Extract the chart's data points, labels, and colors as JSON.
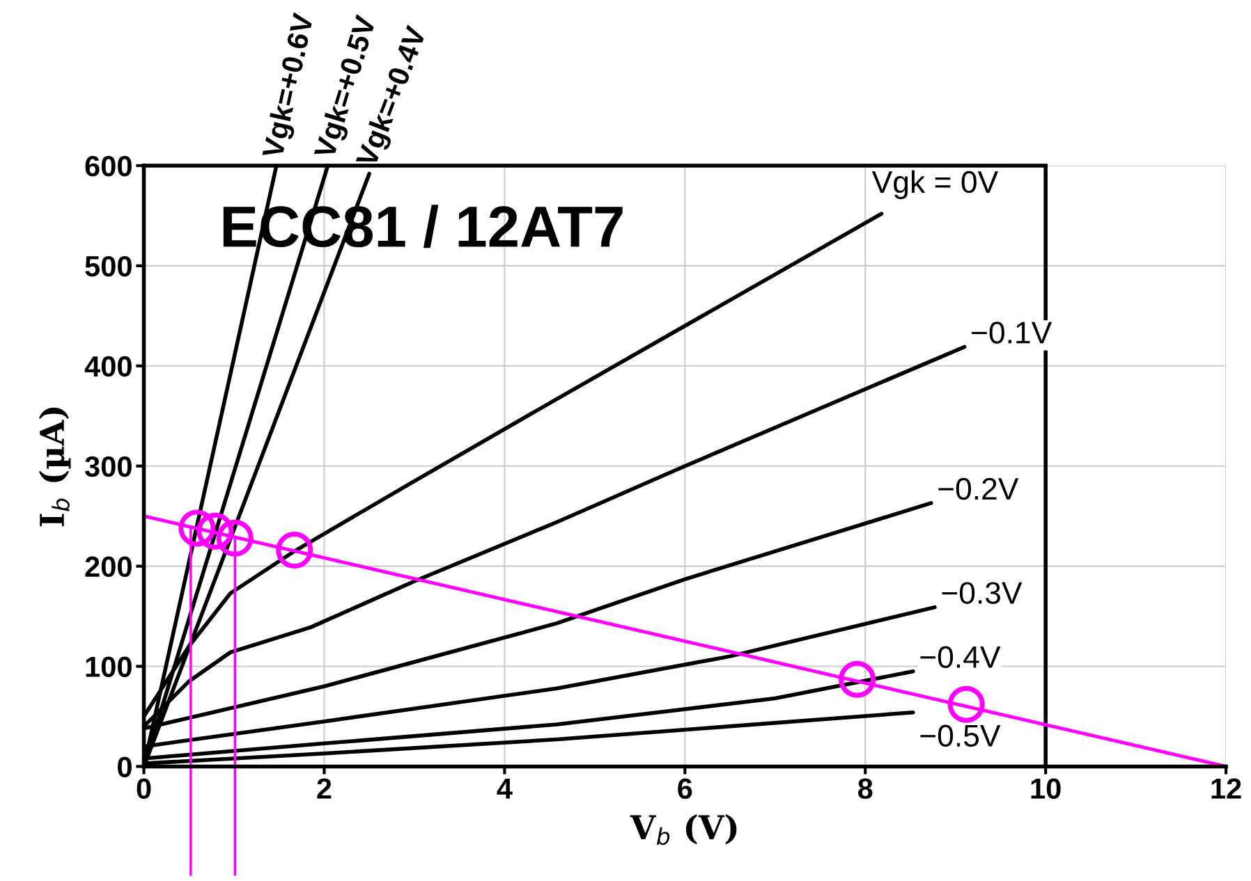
{
  "chart_data": {
    "type": "line",
    "title": "ECC81 / 12AT7",
    "xlabel": "V$_{b}$ (V)",
    "ylabel": "I$_{b}$ (µA)",
    "xlim": [
      0,
      12
    ],
    "xticks": [
      0,
      2,
      4,
      6,
      8,
      10,
      12
    ],
    "ylim": [
      0,
      600
    ],
    "yticks": [
      0,
      100,
      200,
      300,
      400,
      500,
      600
    ],
    "grid": true,
    "legend": false,
    "marker": "none",
    "line_style": "solid",
    "series": [
      {
        "name": "Vgk=+0.6V",
        "color": "#000000",
        "x": [
          0,
          1.47
        ],
        "values": [
          0,
          600
        ]
      },
      {
        "name": "Vgk=+0.5V",
        "color": "#000000",
        "x": [
          0,
          2.04
        ],
        "values": [
          0,
          600
        ]
      },
      {
        "name": "Vgk=+0.4V",
        "color": "#000000",
        "x": [
          0,
          2.5
        ],
        "values": [
          0,
          592
        ]
      },
      {
        "name": "Vgk = 0V",
        "color": "#000000",
        "x": [
          0,
          0.5,
          0.96,
          1.67,
          3,
          4.58,
          6,
          8.18
        ],
        "values": [
          50,
          120,
          173,
          215,
          285,
          367,
          440,
          552
        ]
      },
      {
        "name": "−0.1V",
        "color": "#000000",
        "x": [
          0,
          0.5,
          0.96,
          1.85,
          3,
          4.58,
          6,
          9.1
        ],
        "values": [
          40,
          85,
          114,
          139,
          185,
          244,
          300,
          419
        ]
      },
      {
        "name": "−0.2V",
        "color": "#000000",
        "x": [
          0,
          2,
          4.58,
          6,
          8.73
        ],
        "values": [
          38,
          80,
          143,
          187,
          263
        ]
      },
      {
        "name": "−0.3V",
        "color": "#000000",
        "x": [
          0,
          2,
          4.58,
          6.5,
          8.77
        ],
        "values": [
          20,
          45,
          78,
          110,
          159
        ]
      },
      {
        "name": "−0.4V",
        "color": "#000000",
        "x": [
          0,
          2,
          4.58,
          7,
          8.53
        ],
        "values": [
          8,
          23,
          42,
          68,
          95
        ]
      },
      {
        "name": "−0.5V",
        "color": "#000000",
        "x": [
          0,
          2,
          4.58,
          8.53
        ],
        "values": [
          3,
          13,
          27,
          54
        ]
      },
      {
        "color": "#ff00ff",
        "x": [
          0,
          12
        ],
        "values": [
          250,
          0
        ]
      },
      {
        "type": "scatter",
        "marker": "circle",
        "color": "#ff00ff",
        "x": [
          0.59,
          0.79,
          1.01,
          1.67,
          7.91,
          9.12
        ],
        "values": [
          238,
          235,
          228,
          216,
          87,
          62
        ]
      }
    ],
    "ref_lines": [
      {
        "axis": "x",
        "value": 10,
        "color": "#000000"
      },
      {
        "axis": "x",
        "value": 0.52,
        "color": "#ff00ff"
      },
      {
        "axis": "x",
        "value": 1.01,
        "color": "#ff00ff"
      }
    ]
  }
}
